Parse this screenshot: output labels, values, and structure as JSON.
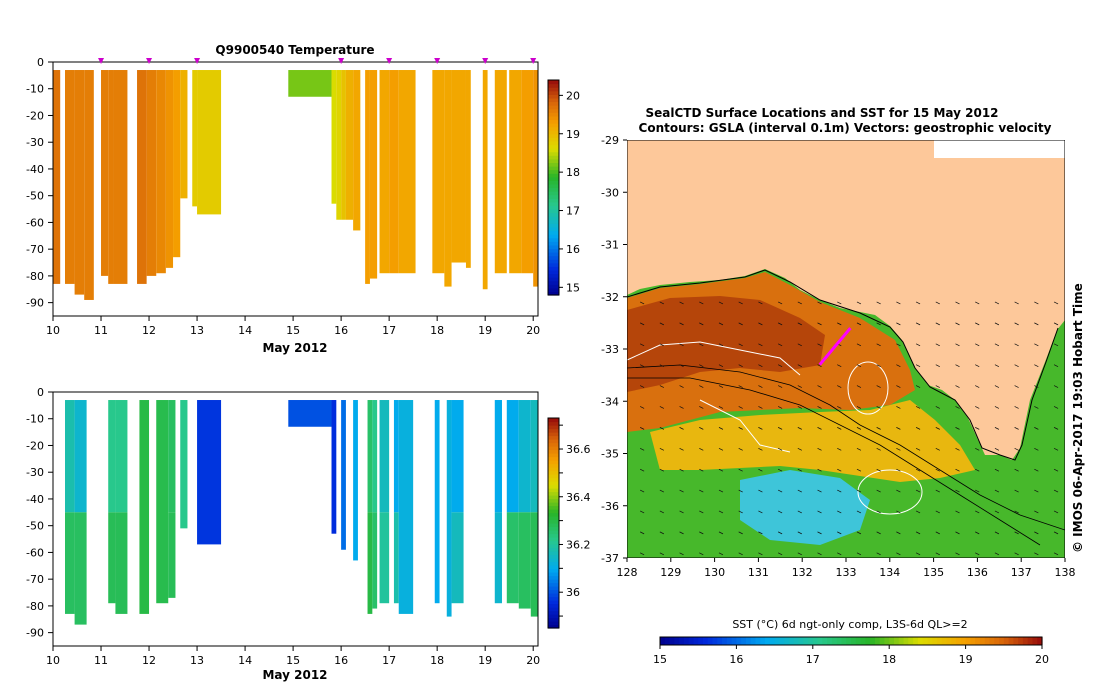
{
  "chart_data": [
    {
      "type": "heatmap",
      "id": "temp",
      "title": "Q9900540  Temperature",
      "xlabel": "May 2012",
      "x_ticks": [
        "10",
        "11",
        "12",
        "13",
        "14",
        "15",
        "16",
        "17",
        "18",
        "19",
        "20"
      ],
      "xlim": [
        10,
        20.1
      ],
      "ylim": [
        -95,
        0
      ],
      "y_ticks": [
        "0",
        "-10",
        "-20",
        "-30",
        "-40",
        "-50",
        "-60",
        "-70",
        "-80",
        "-90"
      ],
      "profile_markers": [
        11,
        12,
        13,
        16,
        17,
        18,
        19,
        20
      ],
      "colorbar": {
        "min": 14.8,
        "max": 20.4,
        "ticks": [
          "15",
          "16",
          "17",
          "18",
          "19",
          "20"
        ]
      },
      "profiles": [
        {
          "x0": 10.0,
          "x1": 10.15,
          "top": -3,
          "bottom": -83,
          "value": 19.7
        },
        {
          "x0": 10.25,
          "x1": 10.45,
          "top": -3,
          "bottom": -83,
          "value": 19.6
        },
        {
          "x0": 10.45,
          "x1": 10.65,
          "top": -3,
          "bottom": -87,
          "value": 19.6
        },
        {
          "x0": 10.65,
          "x1": 10.85,
          "top": -3,
          "bottom": -89,
          "value": 19.6
        },
        {
          "x0": 11.0,
          "x1": 11.15,
          "top": -3,
          "bottom": -80,
          "value": 19.6
        },
        {
          "x0": 11.15,
          "x1": 11.25,
          "top": -3,
          "bottom": -83,
          "value": 19.6
        },
        {
          "x0": 11.25,
          "x1": 11.55,
          "top": -3,
          "bottom": -83,
          "value": 19.6
        },
        {
          "x0": 11.75,
          "x1": 11.95,
          "top": -3,
          "bottom": -83,
          "value": 19.7
        },
        {
          "x0": 11.95,
          "x1": 12.15,
          "top": -3,
          "bottom": -80,
          "value": 19.6
        },
        {
          "x0": 12.15,
          "x1": 12.35,
          "top": -3,
          "bottom": -79,
          "value": 19.5
        },
        {
          "x0": 12.35,
          "x1": 12.5,
          "top": -3,
          "bottom": -77,
          "value": 19.4
        },
        {
          "x0": 12.5,
          "x1": 12.65,
          "top": -3,
          "bottom": -73,
          "value": 19.3
        },
        {
          "x0": 12.65,
          "x1": 12.8,
          "top": -3,
          "bottom": -51,
          "value": 19.1
        },
        {
          "x0": 12.9,
          "x1": 13.0,
          "top": -3,
          "bottom": -54,
          "value": 18.8
        },
        {
          "x0": 13.0,
          "x1": 13.5,
          "top": -3,
          "bottom": -57,
          "value": 18.8
        },
        {
          "x0": 14.9,
          "x1": 15.8,
          "top": -3,
          "bottom": -13,
          "value": 18.2
        },
        {
          "x0": 15.8,
          "x1": 15.9,
          "top": -3,
          "bottom": -53,
          "value": 18.6
        },
        {
          "x0": 15.9,
          "x1": 16.0,
          "top": -3,
          "bottom": -59,
          "value": 18.7
        },
        {
          "x0": 16.0,
          "x1": 16.1,
          "top": -3,
          "bottom": -59,
          "value": 18.9
        },
        {
          "x0": 16.1,
          "x1": 16.25,
          "top": -3,
          "bottom": -59,
          "value": 19.1
        },
        {
          "x0": 16.25,
          "x1": 16.4,
          "top": -3,
          "bottom": -63,
          "value": 19.2
        },
        {
          "x0": 16.5,
          "x1": 16.6,
          "top": -3,
          "bottom": -83,
          "value": 19.3
        },
        {
          "x0": 16.6,
          "x1": 16.75,
          "top": -3,
          "bottom": -81,
          "value": 19.3
        },
        {
          "x0": 16.8,
          "x1": 17.0,
          "top": -3,
          "bottom": -79,
          "value": 19.2
        },
        {
          "x0": 17.0,
          "x1": 17.2,
          "top": -3,
          "bottom": -79,
          "value": 19.3
        },
        {
          "x0": 17.2,
          "x1": 17.55,
          "top": -3,
          "bottom": -79,
          "value": 19.2
        },
        {
          "x0": 17.9,
          "x1": 18.15,
          "top": -3,
          "bottom": -79,
          "value": 19.2
        },
        {
          "x0": 18.15,
          "x1": 18.3,
          "top": -3,
          "bottom": -84,
          "value": 19.2
        },
        {
          "x0": 18.3,
          "x1": 18.6,
          "top": -3,
          "bottom": -75,
          "value": 19.2
        },
        {
          "x0": 18.6,
          "x1": 18.7,
          "top": -3,
          "bottom": -77,
          "value": 19.2
        },
        {
          "x0": 18.95,
          "x1": 19.05,
          "top": -3,
          "bottom": -85,
          "value": 19.2
        },
        {
          "x0": 19.2,
          "x1": 19.45,
          "top": -3,
          "bottom": -79,
          "value": 19.2
        },
        {
          "x0": 19.5,
          "x1": 19.75,
          "top": -3,
          "bottom": -79,
          "value": 19.2
        },
        {
          "x0": 19.75,
          "x1": 20.0,
          "top": -3,
          "bottom": -79,
          "value": 19.3
        },
        {
          "x0": 20.0,
          "x1": 20.1,
          "top": -3,
          "bottom": -84,
          "value": 19.4
        }
      ]
    },
    {
      "type": "heatmap",
      "id": "salt",
      "title": "",
      "xlabel": "May 2012",
      "x_ticks": [
        "10",
        "11",
        "12",
        "13",
        "14",
        "15",
        "16",
        "17",
        "18",
        "19",
        "20"
      ],
      "xlim": [
        10,
        20.1
      ],
      "ylim": [
        -95,
        0
      ],
      "y_ticks": [
        "0",
        "-10",
        "-20",
        "-30",
        "-40",
        "-50",
        "-60",
        "-70",
        "-80",
        "-90"
      ],
      "colorbar": {
        "min": 35.85,
        "max": 36.73,
        "ticks": [
          "35.9",
          "36",
          "36.1",
          "36.2",
          "36.3",
          "36.4",
          "36.5",
          "36.6",
          "36.7"
        ],
        "labelled_ticks": [
          "36",
          "36.2",
          "36.4",
          "36.6"
        ]
      },
      "profiles": [
        {
          "x0": 10.25,
          "x1": 10.45,
          "top": -3,
          "bottom": -83,
          "value": 36.18,
          "deep": 36.27
        },
        {
          "x0": 10.45,
          "x1": 10.7,
          "top": -3,
          "bottom": -87,
          "value": 36.14,
          "deep": 36.27
        },
        {
          "x0": 11.15,
          "x1": 11.3,
          "top": -3,
          "bottom": -79,
          "value": 36.22,
          "deep": 36.28
        },
        {
          "x0": 11.3,
          "x1": 11.55,
          "top": -3,
          "bottom": -83,
          "value": 36.22,
          "deep": 36.28
        },
        {
          "x0": 11.8,
          "x1": 12.0,
          "top": -3,
          "bottom": -83,
          "value": 36.3,
          "deep": 36.3
        },
        {
          "x0": 12.15,
          "x1": 12.4,
          "top": -3,
          "bottom": -79,
          "value": 36.29,
          "deep": 36.29
        },
        {
          "x0": 12.4,
          "x1": 12.55,
          "top": -3,
          "bottom": -77,
          "value": 36.27,
          "deep": 36.28
        },
        {
          "x0": 12.65,
          "x1": 12.8,
          "top": -3,
          "bottom": -51,
          "value": 36.22,
          "deep": 36.22
        },
        {
          "x0": 13.0,
          "x1": 13.5,
          "top": -3,
          "bottom": -57,
          "value": 35.97,
          "deep": 35.97
        },
        {
          "x0": 14.9,
          "x1": 15.8,
          "top": -3,
          "bottom": -13,
          "value": 36.0,
          "deep": 36.0
        },
        {
          "x0": 15.8,
          "x1": 15.9,
          "top": -3,
          "bottom": -53,
          "value": 35.96,
          "deep": 35.96
        },
        {
          "x0": 16.0,
          "x1": 16.1,
          "top": -3,
          "bottom": -59,
          "value": 36.03,
          "deep": 36.03
        },
        {
          "x0": 16.25,
          "x1": 16.35,
          "top": -3,
          "bottom": -63,
          "value": 36.1,
          "deep": 36.1
        },
        {
          "x0": 16.55,
          "x1": 16.65,
          "top": -3,
          "bottom": -83,
          "value": 36.26,
          "deep": 36.3
        },
        {
          "x0": 16.65,
          "x1": 16.75,
          "top": -3,
          "bottom": -81,
          "value": 36.22,
          "deep": 36.26
        },
        {
          "x0": 16.8,
          "x1": 17.0,
          "top": -3,
          "bottom": -79,
          "value": 36.16,
          "deep": 36.2
        },
        {
          "x0": 17.1,
          "x1": 17.2,
          "top": -3,
          "bottom": -79,
          "value": 36.1,
          "deep": 36.18
        },
        {
          "x0": 17.2,
          "x1": 17.5,
          "top": -3,
          "bottom": -83,
          "value": 36.12,
          "deep": 36.12
        },
        {
          "x0": 17.95,
          "x1": 18.05,
          "top": -3,
          "bottom": -79,
          "value": 36.1,
          "deep": 36.1
        },
        {
          "x0": 18.2,
          "x1": 18.3,
          "top": -3,
          "bottom": -84,
          "value": 36.12,
          "deep": 36.12
        },
        {
          "x0": 18.3,
          "x1": 18.55,
          "top": -3,
          "bottom": -79,
          "value": 36.1,
          "deep": 36.16
        },
        {
          "x0": 19.2,
          "x1": 19.35,
          "top": -3,
          "bottom": -79,
          "value": 36.1,
          "deep": 36.14
        },
        {
          "x0": 19.45,
          "x1": 19.7,
          "top": -3,
          "bottom": -79,
          "value": 36.1,
          "deep": 36.26
        },
        {
          "x0": 19.7,
          "x1": 19.95,
          "top": -3,
          "bottom": -81,
          "value": 36.14,
          "deep": 36.27
        },
        {
          "x0": 19.95,
          "x1": 20.1,
          "top": -3,
          "bottom": -84,
          "value": 36.16,
          "deep": 36.28
        }
      ]
    },
    {
      "type": "map",
      "id": "sstmap",
      "title_line1": "SealCTD Surface Locations and SST for 15 May 2012",
      "title_line2": "Contours: GSLA (interval 0.1m) Vectors: geostrophic velocity",
      "x_ticks": [
        "128",
        "129",
        "130",
        "131",
        "132",
        "133",
        "134",
        "135",
        "136",
        "137",
        "138"
      ],
      "y_ticks": [
        "-29",
        "-30",
        "-31",
        "-32",
        "-33",
        "-34",
        "-35",
        "-36",
        "-37"
      ],
      "xlim": [
        128,
        138
      ],
      "ylim": [
        -37,
        -29
      ],
      "colorbar_label": "SST (°C) 6d ngt-only comp, L3S-6d QL>=2",
      "colorbar": {
        "min": 15,
        "max": 20,
        "ticks": [
          "15",
          "16",
          "17",
          "18",
          "19",
          "20"
        ]
      },
      "credit": "© IMOS 06-Apr-2017 19:03 Hobart Time",
      "seal_track": [
        [
          132.4,
          -33.3
        ],
        [
          132.5,
          -33.2
        ],
        [
          132.6,
          -33.1
        ],
        [
          132.7,
          -33.0
        ],
        [
          132.8,
          -32.9
        ],
        [
          132.9,
          -32.8
        ],
        [
          133.0,
          -32.7
        ],
        [
          133.1,
          -32.6
        ]
      ]
    }
  ]
}
